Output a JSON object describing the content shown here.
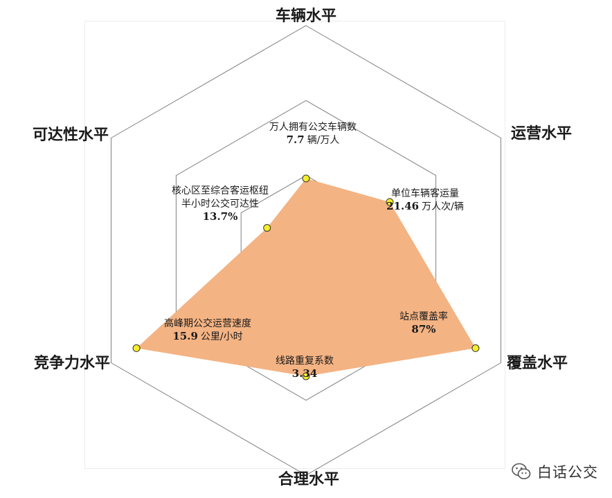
{
  "chart_data": {
    "type": "radar",
    "axes": [
      "车辆水平",
      "运营水平",
      "覆盖水平",
      "合理水平",
      "竞争力水平",
      "可达性水平"
    ],
    "rings": 3,
    "fill_color": "#f4b383",
    "point_color": "#f5ee2a",
    "grid_color": "#7f7f7f",
    "series": [
      {
        "values": [
          0.32,
          0.43,
          0.87,
          0.56,
          0.87,
          0.2
        ],
        "annotations": [
          {
            "name_lines": [
              "万人拥有公交车辆数"
            ],
            "value": "7.7",
            "unit": "辆/万人"
          },
          {
            "name_lines": [
              "单位车辆客运量"
            ],
            "value": "21.46",
            "unit": "万人次/辆"
          },
          {
            "name_lines": [
              "站点覆盖率"
            ],
            "value": "87%",
            "unit": ""
          },
          {
            "name_lines": [
              "线路重复系数"
            ],
            "value": "3.34",
            "unit": ""
          },
          {
            "name_lines": [
              "高峰期公交运营速度"
            ],
            "value": "15.9",
            "unit": "公里/小时"
          },
          {
            "name_lines": [
              "核心区至综合客运枢纽",
              "半小时公交可达性"
            ],
            "value": "13.7%",
            "unit": ""
          }
        ]
      }
    ]
  },
  "watermark": {
    "text": "白话公交",
    "icon": "wechat-icon"
  }
}
